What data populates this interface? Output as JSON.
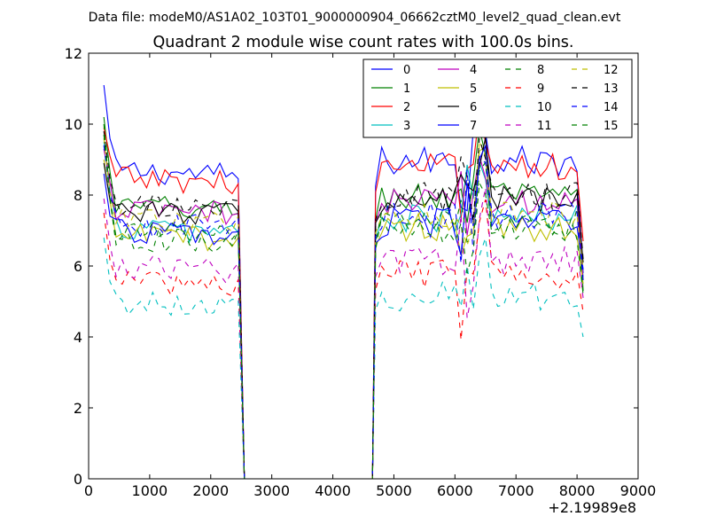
{
  "header": "Data file: modeM0/AS1A02_103T01_9000000904_06662cztM0_level2_quad_clean.evt",
  "chart_data": {
    "type": "line",
    "title": "Quadrant 2 module wise count rates with 100.0s bins.",
    "xlabel": "",
    "ylabel": "",
    "x_offset_label": "+2.19989e8",
    "xlim": [
      0,
      9000
    ],
    "ylim": [
      0,
      12
    ],
    "x_ticks": [
      0,
      1000,
      2000,
      3000,
      4000,
      5000,
      6000,
      7000,
      8000,
      9000
    ],
    "y_ticks": [
      0,
      2,
      4,
      6,
      8,
      10,
      12
    ],
    "grid": false,
    "legend_position": "top-right",
    "x_segments": [
      {
        "start": 250,
        "end": 2450,
        "step": 100
      },
      {
        "start": 4700,
        "end": 8050,
        "step": 100
      }
    ],
    "gap": {
      "fall_to": 2550,
      "zero_until": 4650
    },
    "series": [
      {
        "name": "0",
        "color": "#0000ff",
        "dash": "solid",
        "level": 8.7,
        "start": 11.1,
        "end": 5.8
      },
      {
        "name": "1",
        "color": "#008000",
        "dash": "solid",
        "level": 7.7,
        "start": 10.2,
        "end": 5.3
      },
      {
        "name": "2",
        "color": "#ff0000",
        "dash": "solid",
        "level": 8.5,
        "start": 9.9,
        "end": 6.7
      },
      {
        "name": "3",
        "color": "#00bfbf",
        "dash": "solid",
        "level": 7.1,
        "start": 9.5,
        "end": 5.7
      },
      {
        "name": "4",
        "color": "#bf00bf",
        "dash": "solid",
        "level": 7.6,
        "start": 9.3,
        "end": 5.6
      },
      {
        "name": "5",
        "color": "#bfbf00",
        "dash": "solid",
        "level": 6.9,
        "start": 9.0,
        "end": 5.5
      },
      {
        "name": "6",
        "color": "#000000",
        "dash": "solid",
        "level": 7.6,
        "start": 8.9,
        "end": 6.1
      },
      {
        "name": "7",
        "color": "#0000ff",
        "dash": "solid",
        "level": 7.0,
        "start": 8.6,
        "end": 5.9
      },
      {
        "name": "8",
        "color": "#008000",
        "dash": "dashed",
        "level": 7.0,
        "start": 10.0,
        "end": 5.2
      },
      {
        "name": "9",
        "color": "#ff0000",
        "dash": "dashed",
        "level": 5.6,
        "start": 7.5,
        "end": 4.7
      },
      {
        "name": "10",
        "color": "#00bfbf",
        "dash": "dashed",
        "level": 5.0,
        "start": 6.8,
        "end": 4.0
      },
      {
        "name": "11",
        "color": "#bf00bf",
        "dash": "dashed",
        "level": 6.0,
        "start": 7.9,
        "end": 5.1
      },
      {
        "name": "12",
        "color": "#bfbf00",
        "dash": "dashed",
        "level": 7.3,
        "start": 9.6,
        "end": 5.9
      },
      {
        "name": "13",
        "color": "#000000",
        "dash": "dashed",
        "level": 7.7,
        "start": 9.8,
        "end": 6.2
      },
      {
        "name": "14",
        "color": "#0000ff",
        "dash": "dashed",
        "level": 7.2,
        "start": 9.4,
        "end": 5.6
      },
      {
        "name": "15",
        "color": "#008000",
        "dash": "dashed",
        "level": 6.8,
        "start": 9.7,
        "end": 5.2
      }
    ]
  }
}
